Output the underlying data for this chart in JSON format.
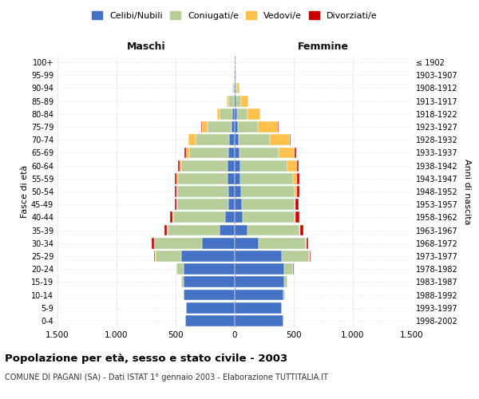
{
  "age_groups": [
    "0-4",
    "5-9",
    "10-14",
    "15-19",
    "20-24",
    "25-29",
    "30-34",
    "35-39",
    "40-44",
    "45-49",
    "50-54",
    "55-59",
    "60-64",
    "65-69",
    "70-74",
    "75-79",
    "80-84",
    "85-89",
    "90-94",
    "95-99",
    "100+"
  ],
  "birth_years": [
    "1998-2002",
    "1993-1997",
    "1988-1992",
    "1983-1987",
    "1978-1982",
    "1973-1977",
    "1968-1972",
    "1963-1967",
    "1958-1962",
    "1953-1957",
    "1948-1952",
    "1943-1947",
    "1938-1942",
    "1933-1937",
    "1928-1932",
    "1923-1927",
    "1918-1922",
    "1913-1917",
    "1908-1912",
    "1903-1907",
    "≤ 1902"
  ],
  "males": {
    "celibi": [
      420,
      410,
      430,
      430,
      430,
      450,
      280,
      130,
      80,
      55,
      55,
      60,
      60,
      55,
      50,
      30,
      20,
      10,
      5,
      3,
      2
    ],
    "coniugati": [
      0,
      2,
      5,
      20,
      60,
      220,
      400,
      440,
      440,
      430,
      430,
      420,
      390,
      330,
      280,
      200,
      110,
      45,
      10,
      2,
      0
    ],
    "vedovi": [
      0,
      0,
      0,
      0,
      0,
      5,
      5,
      5,
      5,
      5,
      5,
      10,
      15,
      30,
      60,
      50,
      20,
      10,
      5,
      0,
      0
    ],
    "divorziati": [
      0,
      0,
      0,
      2,
      5,
      10,
      15,
      20,
      25,
      20,
      20,
      15,
      15,
      10,
      5,
      5,
      0,
      0,
      0,
      0,
      0
    ]
  },
  "females": {
    "nubili": [
      410,
      400,
      415,
      420,
      420,
      400,
      200,
      110,
      70,
      60,
      55,
      50,
      45,
      40,
      35,
      25,
      18,
      12,
      8,
      4,
      3
    ],
    "coniugate": [
      0,
      2,
      8,
      25,
      70,
      230,
      400,
      440,
      440,
      445,
      450,
      440,
      400,
      330,
      260,
      170,
      90,
      40,
      10,
      2,
      0
    ],
    "vedove": [
      0,
      0,
      0,
      0,
      2,
      5,
      5,
      5,
      5,
      10,
      20,
      40,
      80,
      140,
      170,
      170,
      110,
      60,
      25,
      5,
      2
    ],
    "divorziate": [
      0,
      0,
      0,
      2,
      5,
      10,
      20,
      25,
      30,
      25,
      25,
      20,
      15,
      10,
      5,
      5,
      0,
      0,
      0,
      0,
      0
    ]
  },
  "colors": {
    "celibi": "#4472c4",
    "coniugati": "#b7ce9a",
    "vedovi": "#ffc04c",
    "divorziati": "#cc0000"
  },
  "title": "Popolazione per età, sesso e stato civile - 2003",
  "subtitle": "COMUNE DI PAGANI (SA) - Dati ISTAT 1° gennaio 2003 - Elaborazione TUTTITALIA.IT",
  "xlabel_left": "Maschi",
  "xlabel_right": "Femmine",
  "ylabel_left": "Fasce di età",
  "ylabel_right": "Anni di nascita",
  "xlim": 1500,
  "bg_color": "#ffffff",
  "grid_color": "#cccccc",
  "legend_labels": [
    "Celibi/Nubili",
    "Coniugati/e",
    "Vedovi/e",
    "Divorziati/e"
  ]
}
